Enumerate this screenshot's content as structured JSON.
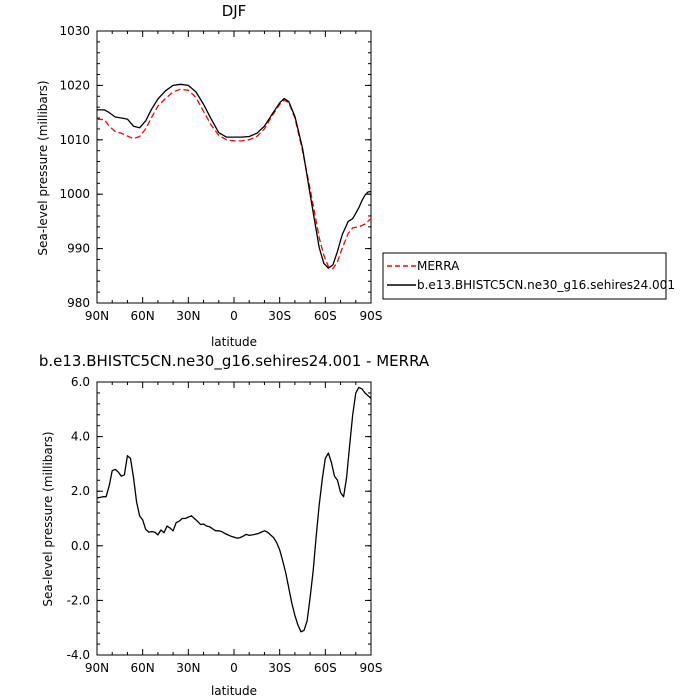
{
  "chart_data": [
    {
      "type": "line",
      "title": "DJF",
      "xlabel": "latitude",
      "ylabel": "Sea-level pressure (millibars)",
      "x_tick_labels": [
        "90N",
        "60N",
        "30N",
        "0",
        "30S",
        "60S",
        "90S"
      ],
      "x_tick_values": [
        90,
        60,
        30,
        0,
        -30,
        -60,
        -90
      ],
      "xlim": [
        90,
        -90
      ],
      "ylim": [
        980,
        1030
      ],
      "y_ticks": [
        980,
        990,
        1000,
        1010,
        1020,
        1030
      ],
      "y_tick_labels": [
        "980",
        "990",
        "1000",
        "1010",
        "1020",
        "1030"
      ],
      "grid": false,
      "legend_position": "outside-right",
      "series": [
        {
          "name": "MERRA",
          "color": "#ff0000",
          "dash": "dashed",
          "x": [
            90,
            85,
            82,
            78,
            74,
            70,
            66,
            62,
            58,
            54,
            50,
            45,
            40,
            35,
            30,
            25,
            20,
            15,
            10,
            5,
            0,
            -5,
            -10,
            -15,
            -20,
            -25,
            -30,
            -33,
            -36,
            -40,
            -45,
            -50,
            -53,
            -56,
            -59,
            -62,
            -65,
            -68,
            -71,
            -75,
            -78,
            -82,
            -86,
            -90
          ],
          "y": [
            1013.8,
            1013.7,
            1012.5,
            1011.5,
            1011.2,
            1010.7,
            1010.2,
            1010.6,
            1012,
            1014.2,
            1016.2,
            1017.6,
            1018.8,
            1019.3,
            1019.1,
            1017.8,
            1015.2,
            1012.7,
            1010.8,
            1010,
            1009.8,
            1009.8,
            1010,
            1010.6,
            1012,
            1014.4,
            1016.5,
            1017.3,
            1016.8,
            1014,
            1008,
            1001,
            996.5,
            992,
            988.8,
            986.7,
            986.3,
            987.6,
            990,
            992.8,
            993.8,
            994,
            994.5,
            995.5
          ]
        },
        {
          "name": "b.e13.BHISTC5CN.ne30_g16.sehires24.001",
          "color": "#000000",
          "dash": "solid",
          "x": [
            90,
            85,
            82,
            78,
            74,
            70,
            66,
            62,
            58,
            54,
            50,
            45,
            40,
            35,
            30,
            25,
            20,
            15,
            10,
            5,
            0,
            -5,
            -10,
            -15,
            -20,
            -25,
            -30,
            -33,
            -36,
            -40,
            -45,
            -50,
            -53,
            -56,
            -59,
            -62,
            -65,
            -68,
            -71,
            -75,
            -78,
            -82,
            -84,
            -86,
            -88,
            -90
          ],
          "y": [
            1015.5,
            1015.5,
            1015,
            1014.2,
            1014,
            1013.8,
            1012.5,
            1012.2,
            1013.5,
            1015.7,
            1017.5,
            1019,
            1020,
            1020.2,
            1020,
            1018.8,
            1016.5,
            1013.8,
            1011.3,
            1010.5,
            1010.5,
            1010.5,
            1010.6,
            1011.2,
            1012.5,
            1014.7,
            1016.8,
            1017.6,
            1017,
            1014.3,
            1008.5,
            1000,
            995,
            990.2,
            987.3,
            986.4,
            987,
            989.5,
            992.5,
            995,
            995.5,
            997.5,
            998.8,
            999.8,
            1000.4,
            1000.5
          ]
        }
      ]
    },
    {
      "type": "line",
      "title": "b.e13.BHISTC5CN.ne30_g16.sehires24.001 - MERRA",
      "xlabel": "latitude",
      "ylabel": "Sea-level pressure (millibars)",
      "x_tick_labels": [
        "90N",
        "60N",
        "30N",
        "0",
        "30S",
        "60S",
        "90S"
      ],
      "x_tick_values": [
        90,
        60,
        30,
        0,
        -30,
        -60,
        -90
      ],
      "xlim": [
        90,
        -90
      ],
      "ylim": [
        -4,
        6
      ],
      "y_ticks": [
        -4,
        -2,
        0,
        2,
        4,
        6
      ],
      "y_tick_labels": [
        "-4.0",
        "-2.0",
        "0.0",
        "2.0",
        "4.0",
        "6.0"
      ],
      "grid": false,
      "series": [
        {
          "color": "#000000",
          "dash": "solid",
          "x": [
            90,
            86,
            84,
            82,
            80,
            78,
            76,
            74,
            72,
            70,
            68,
            66,
            64,
            62,
            60,
            58,
            56,
            54,
            52,
            50,
            48,
            46,
            44,
            42,
            40,
            38,
            36,
            34,
            32,
            30,
            28,
            26,
            24,
            22,
            20,
            18,
            16,
            14,
            12,
            10,
            8,
            6,
            4,
            2,
            0,
            -2,
            -4,
            -6,
            -8,
            -10,
            -12,
            -14,
            -16,
            -18,
            -20,
            -22,
            -24,
            -26,
            -28,
            -30,
            -32,
            -34,
            -36,
            -38,
            -40,
            -42,
            -44,
            -46,
            -48,
            -50,
            -52,
            -54,
            -56,
            -58,
            -60,
            -62,
            -64,
            -66,
            -68,
            -70,
            -72,
            -74,
            -76,
            -78,
            -80,
            -82,
            -84,
            -86,
            -88,
            -89,
            -90
          ],
          "y": [
            1.75,
            1.8,
            1.8,
            2.2,
            2.75,
            2.8,
            2.7,
            2.55,
            2.6,
            3.3,
            3.2,
            2.5,
            1.6,
            1.1,
            0.95,
            0.6,
            0.5,
            0.52,
            0.5,
            0.4,
            0.58,
            0.48,
            0.72,
            0.65,
            0.55,
            0.85,
            0.9,
            1.0,
            1.0,
            1.05,
            1.1,
            1.0,
            0.9,
            0.78,
            0.8,
            0.72,
            0.7,
            0.62,
            0.55,
            0.55,
            0.52,
            0.45,
            0.4,
            0.35,
            0.32,
            0.28,
            0.3,
            0.35,
            0.42,
            0.38,
            0.4,
            0.42,
            0.45,
            0.5,
            0.55,
            0.5,
            0.4,
            0.3,
            0.12,
            -0.15,
            -0.55,
            -1.0,
            -1.55,
            -2.1,
            -2.55,
            -2.9,
            -3.15,
            -3.1,
            -2.75,
            -1.9,
            -0.9,
            0.35,
            1.5,
            2.45,
            3.2,
            3.4,
            3.05,
            2.55,
            2.4,
            1.95,
            1.8,
            2.5,
            3.7,
            4.8,
            5.6,
            5.8,
            5.75,
            5.6,
            5.5,
            5.45,
            5.4
          ]
        }
      ]
    }
  ]
}
